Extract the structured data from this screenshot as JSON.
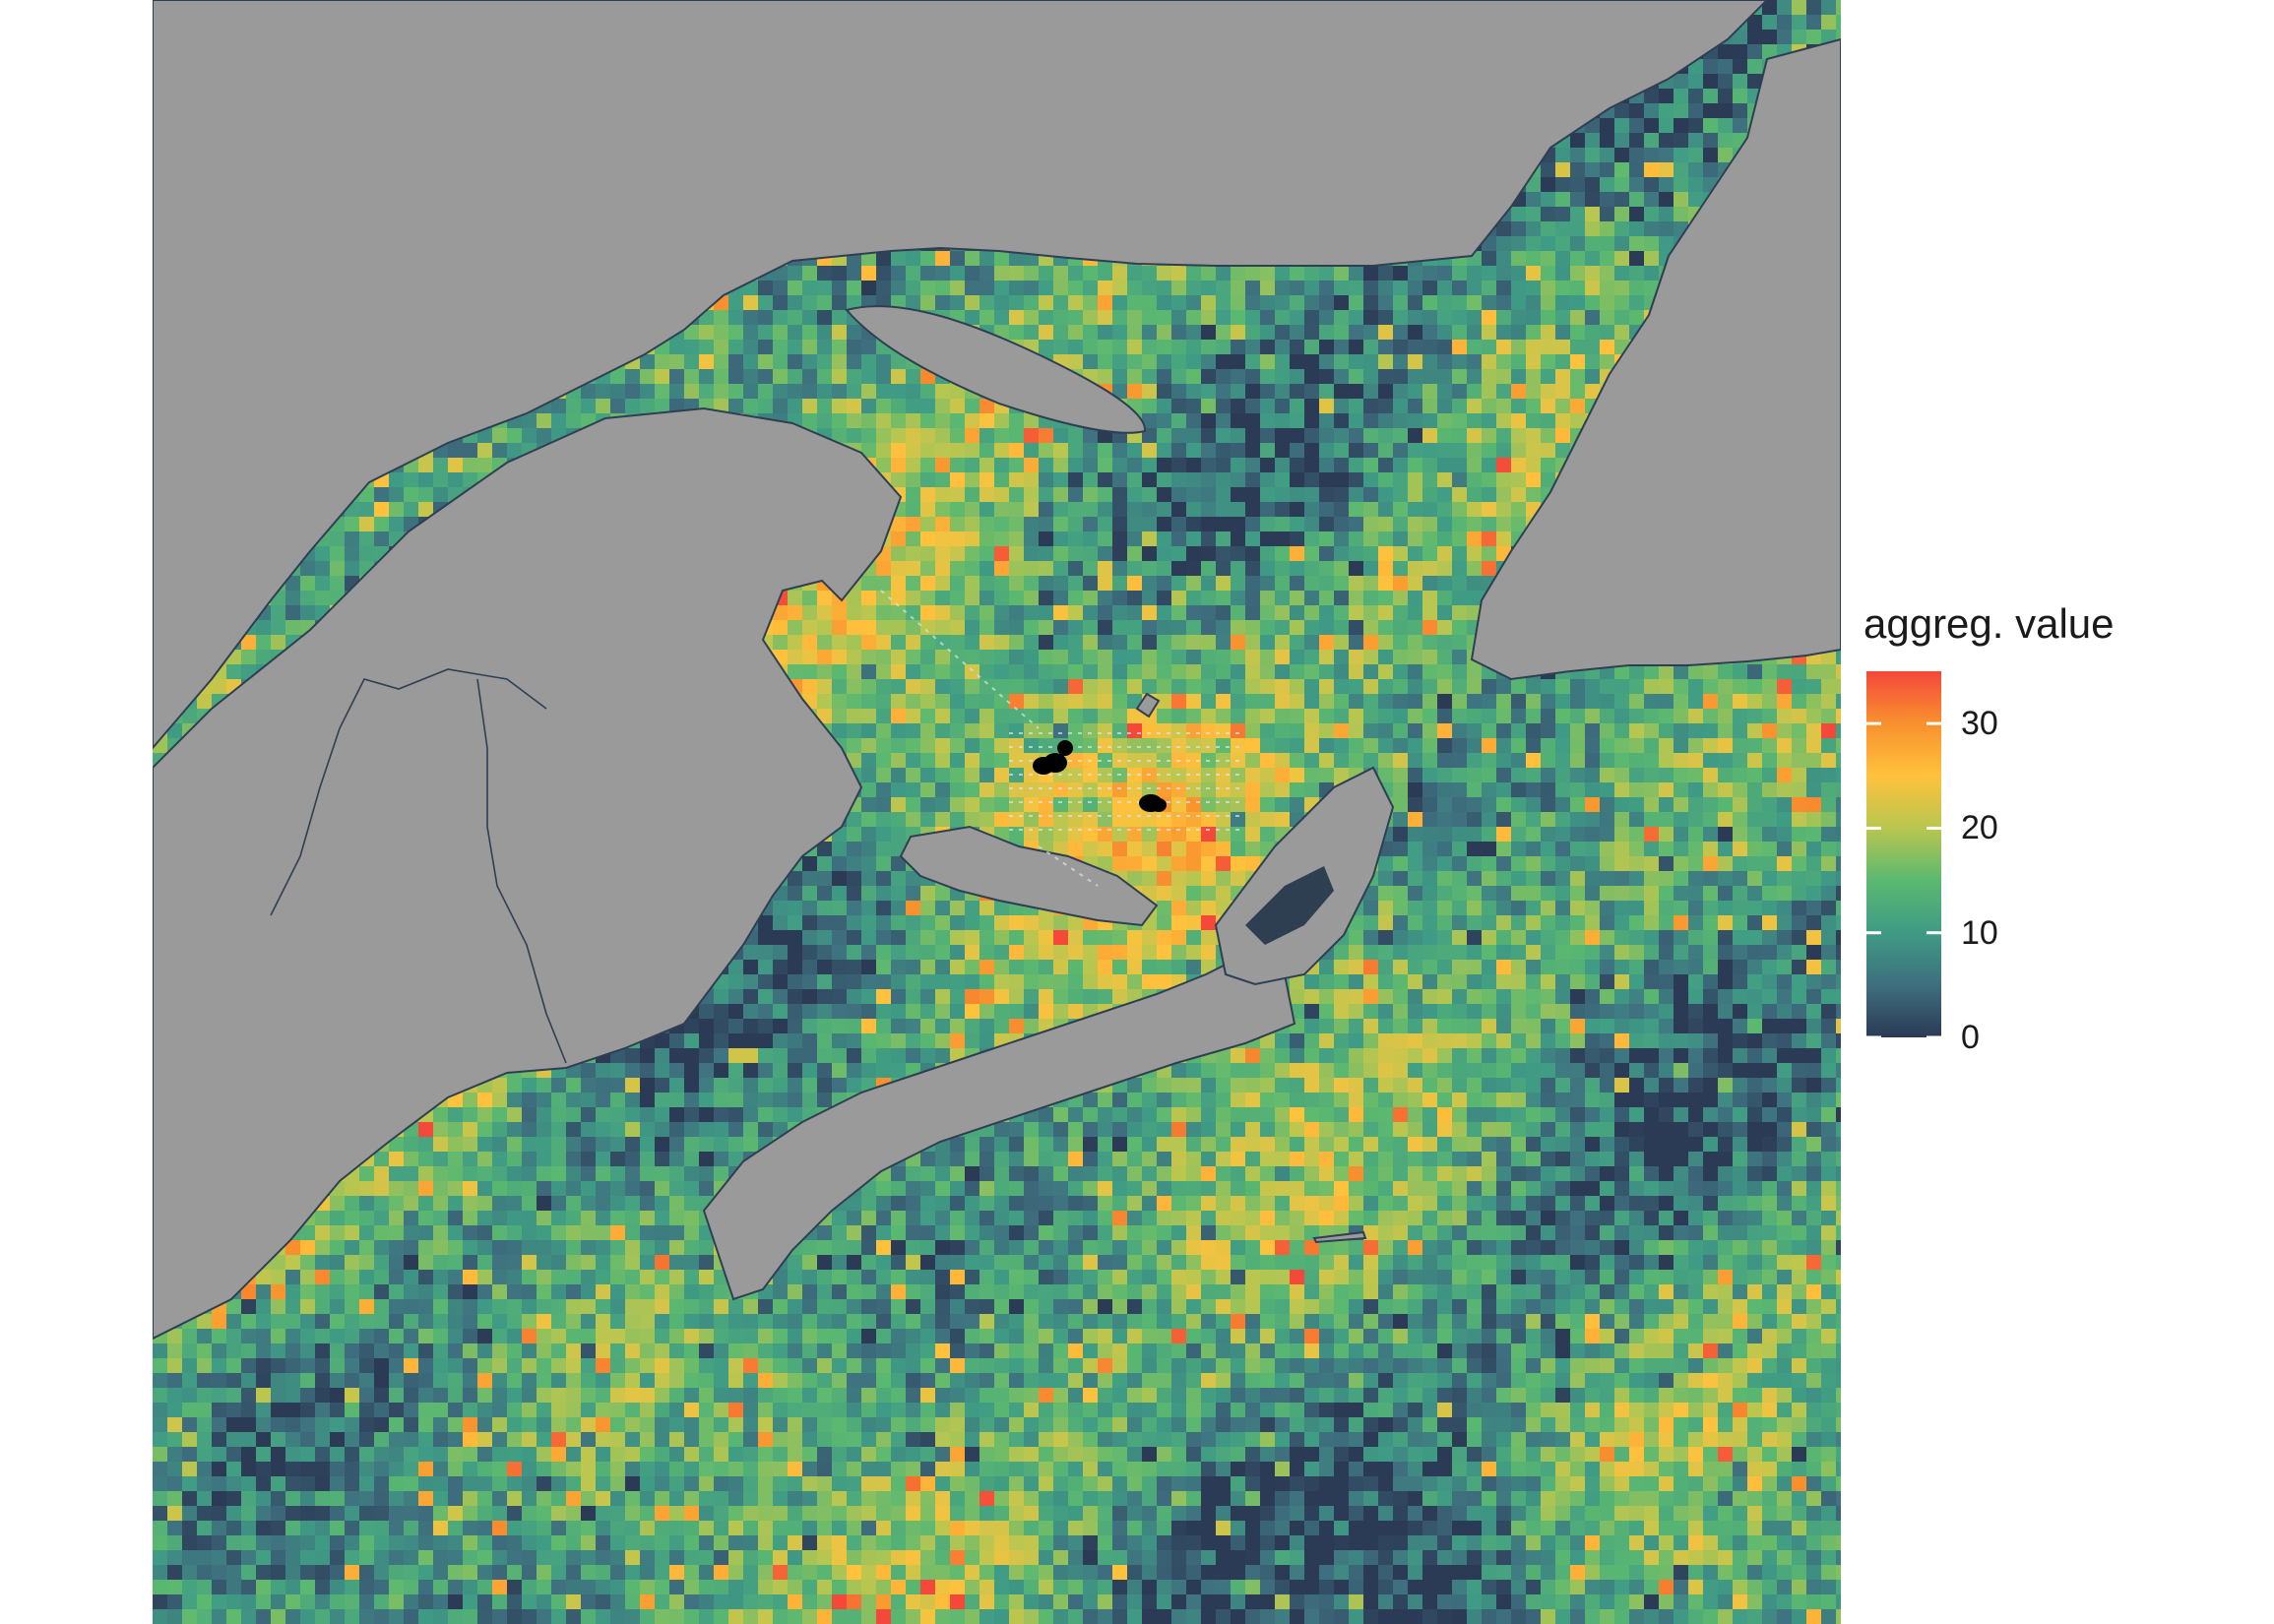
{
  "map": {
    "land_color": "#9a9a9a",
    "land_outline_color": "#2f3f52",
    "survey_marker_color": "#000000",
    "survey_grid_color": "#d9e6ee"
  },
  "legend": {
    "title": "aggreg. value",
    "min": 0,
    "max": 35,
    "ticks": [
      {
        "value": 0,
        "label": "0"
      },
      {
        "value": 10,
        "label": "10"
      },
      {
        "value": 20,
        "label": "20"
      },
      {
        "value": 30,
        "label": "30"
      }
    ],
    "color_stops": [
      {
        "value": 0,
        "color": "#2b3a55"
      },
      {
        "value": 5,
        "color": "#3e6f7e"
      },
      {
        "value": 10,
        "color": "#3f9b84"
      },
      {
        "value": 15,
        "color": "#5bb870"
      },
      {
        "value": 20,
        "color": "#b8c650"
      },
      {
        "value": 25,
        "color": "#ffc23d"
      },
      {
        "value": 30,
        "color": "#f8912e"
      },
      {
        "value": 35,
        "color": "#f4483b"
      }
    ]
  }
}
